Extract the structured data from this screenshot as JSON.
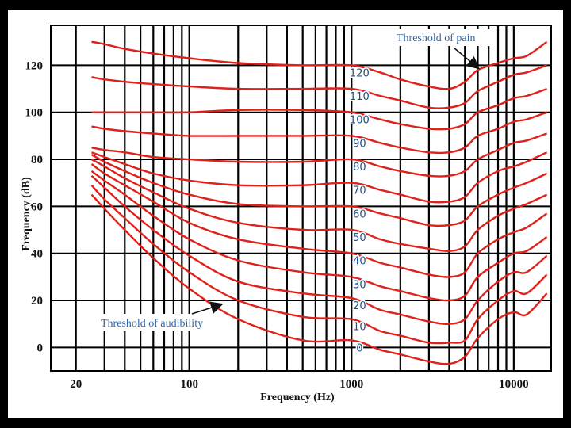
{
  "chart_data": {
    "type": "line",
    "title": "",
    "xlabel": "Frequency (Hz)",
    "ylabel": "Frequency (dB)",
    "x_scale": "log",
    "xlim": [
      14,
      17000
    ],
    "ylim": [
      -10,
      137
    ],
    "x_ticks": [
      {
        "value": 20,
        "label": "20"
      },
      {
        "value": 100,
        "label": "100"
      },
      {
        "value": 1000,
        "label": "1000"
      },
      {
        "value": 10000,
        "label": "10000"
      }
    ],
    "y_ticks": [
      {
        "value": 0,
        "label": "0"
      },
      {
        "value": 20,
        "label": "20"
      },
      {
        "value": 40,
        "label": "40"
      },
      {
        "value": 60,
        "label": "60"
      },
      {
        "value": 80,
        "label": "80"
      },
      {
        "value": 100,
        "label": "100"
      },
      {
        "value": 120,
        "label": "120"
      }
    ],
    "grid_y": [
      0,
      20,
      40,
      60,
      80,
      100,
      120
    ],
    "grid_x": [
      20,
      30,
      40,
      50,
      60,
      70,
      80,
      90,
      100,
      200,
      300,
      400,
      500,
      600,
      700,
      800,
      900,
      1000,
      2000,
      3000,
      4000,
      5000,
      6000,
      7000,
      8000,
      9000,
      10000
    ],
    "x": [
      25,
      30,
      40,
      60,
      100,
      200,
      500,
      1000,
      1500,
      2000,
      3000,
      4000,
      5000,
      6000,
      8000,
      10000,
      12000,
      16000
    ],
    "series": [
      {
        "name": "0",
        "values": [
          65,
          59,
          50,
          38,
          25,
          12,
          3,
          3,
          -1,
          -3,
          -6,
          -7,
          -4,
          4,
          12,
          15,
          14,
          23
        ]
      },
      {
        "name": "10",
        "values": [
          69,
          63,
          55,
          44,
          32,
          20,
          13,
          12,
          7,
          5,
          2,
          2,
          3,
          12,
          20,
          24,
          23,
          31
        ]
      },
      {
        "name": "20",
        "values": [
          73,
          68,
          60,
          50,
          39,
          28,
          23,
          21,
          16,
          14,
          11,
          10,
          12,
          20,
          28,
          32,
          32,
          39
        ]
      },
      {
        "name": "30",
        "values": [
          75,
          71,
          65,
          56,
          46,
          37,
          32,
          30,
          26,
          24,
          21,
          20,
          22,
          30,
          36,
          40,
          41,
          47
        ]
      },
      {
        "name": "40",
        "values": [
          78,
          74,
          69,
          62,
          53,
          46,
          42,
          40,
          36,
          34,
          31,
          30,
          32,
          40,
          46,
          49,
          51,
          57
        ]
      },
      {
        "name": "50",
        "values": [
          80,
          77,
          72,
          66,
          59,
          53,
          50,
          50,
          46,
          44,
          42,
          41,
          43,
          50,
          56,
          59,
          61,
          65
        ]
      },
      {
        "name": "60",
        "values": [
          82,
          79,
          75,
          70,
          65,
          61,
          60,
          60,
          57,
          55,
          52,
          52,
          54,
          60,
          65,
          68,
          70,
          74
        ]
      },
      {
        "name": "70",
        "values": [
          83,
          81,
          78,
          74,
          71,
          69,
          69,
          70,
          67,
          65,
          62,
          62,
          64,
          70,
          75,
          77,
          79,
          83
        ]
      },
      {
        "name": "80",
        "values": [
          85,
          84,
          83,
          81,
          80,
          79,
          79,
          80,
          77,
          75,
          73,
          73,
          75,
          80,
          84,
          87,
          88,
          91
        ]
      },
      {
        "name": "90",
        "values": [
          94,
          93,
          92,
          91,
          90,
          90,
          90,
          90,
          87,
          85,
          83,
          83,
          85,
          90,
          93,
          96,
          97,
          100
        ]
      },
      {
        "name": "100",
        "values": [
          100,
          100,
          100,
          100,
          100,
          101,
          101,
          100,
          97,
          95,
          93,
          93,
          95,
          100,
          103,
          106,
          107,
          110
        ]
      },
      {
        "name": "110",
        "values": [
          115,
          114,
          113,
          112,
          111,
          110,
          110,
          110,
          107,
          105,
          102,
          102,
          104,
          109,
          113,
          116,
          117,
          120
        ]
      },
      {
        "name": "120",
        "values": [
          130,
          129,
          127,
          125,
          123,
          121,
          120,
          120,
          117,
          114,
          111,
          110,
          113,
          118,
          121,
          123,
          124,
          130
        ]
      }
    ],
    "phon_labels": [
      "120",
      "110",
      "100",
      "90",
      "80",
      "70",
      "60",
      "50",
      "40",
      "30",
      "20",
      "10",
      "0"
    ],
    "annotations": [
      {
        "text": "Threshold of pain",
        "points_to": {
          "x": 6000,
          "y": 117
        }
      },
      {
        "text": "Threshold of audibility",
        "points_to": {
          "x": 150,
          "y": 27
        }
      }
    ],
    "colors": {
      "curve": "#e0201b",
      "grid": "#000000",
      "label": "#1f4e8c",
      "annotation": "#2f66a8"
    }
  }
}
